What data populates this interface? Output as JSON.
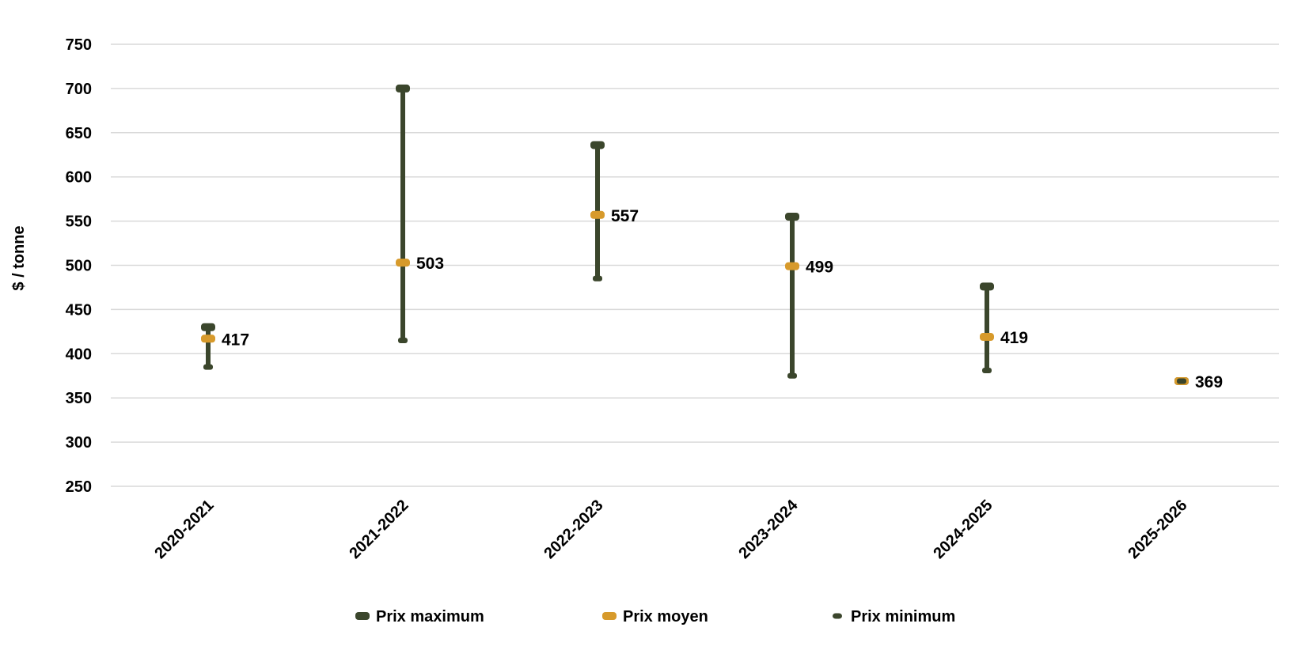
{
  "chart_data": {
    "type": "scatter",
    "title": "",
    "xlabel": "",
    "ylabel": "$ / tonne",
    "ylim": [
      250,
      750
    ],
    "yticks": [
      250,
      300,
      350,
      400,
      450,
      500,
      550,
      600,
      650,
      700,
      750
    ],
    "grid": true,
    "legend_position": "bottom",
    "categories": [
      "2020-2021",
      "2021-2022",
      "2022-2023",
      "2023-2024",
      "2024-2025",
      "2025-2026"
    ],
    "series": [
      {
        "name": "Prix maximum",
        "values": [
          430,
          700,
          636,
          555,
          476,
          369
        ],
        "color": "#3b462c"
      },
      {
        "name": "Prix moyen",
        "values": [
          417,
          503,
          557,
          499,
          419,
          369
        ],
        "color": "#d79a2b"
      },
      {
        "name": "Prix minimum",
        "values": [
          385,
          415,
          485,
          375,
          381,
          369
        ],
        "color": "#3b462c"
      }
    ],
    "data_labels": [
      "417",
      "503",
      "557",
      "499",
      "419",
      "369"
    ]
  }
}
